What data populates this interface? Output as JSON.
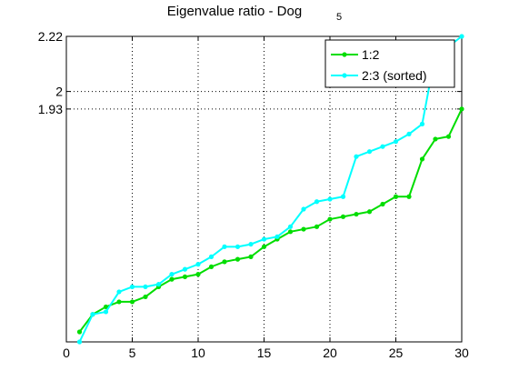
{
  "chart_data": {
    "type": "line",
    "title": "Eigenvalue ratio - Dog",
    "title_subscript": "5",
    "xlabel": "",
    "ylabel": "",
    "xlim": [
      0,
      30
    ],
    "ylim": [
      1,
      2.22
    ],
    "x_ticks": [
      0,
      5,
      10,
      15,
      20,
      25,
      30
    ],
    "x_tick_labels": [
      "0",
      "5",
      "10",
      "15",
      "20",
      "25",
      "30"
    ],
    "y_ticks": [
      1.93,
      2,
      2.22
    ],
    "y_tick_labels": [
      "1.93",
      "2",
      "2.22"
    ],
    "grid": true,
    "legend_position": "top-right",
    "series": [
      {
        "name": "1:2",
        "color": "#00dd00",
        "x": [
          1,
          2,
          3,
          4,
          5,
          6,
          7,
          8,
          9,
          10,
          11,
          12,
          13,
          14,
          15,
          16,
          17,
          18,
          19,
          20,
          21,
          22,
          23,
          24,
          25,
          26,
          27,
          28,
          29,
          30
        ],
        "values": [
          1.04,
          1.11,
          1.14,
          1.16,
          1.16,
          1.18,
          1.22,
          1.25,
          1.26,
          1.27,
          1.3,
          1.32,
          1.33,
          1.34,
          1.38,
          1.41,
          1.44,
          1.45,
          1.46,
          1.49,
          1.5,
          1.51,
          1.52,
          1.55,
          1.58,
          1.58,
          1.73,
          1.81,
          1.82,
          1.93
        ]
      },
      {
        "name": "2:3 (sorted)",
        "color": "#00ffff",
        "x": [
          1,
          2,
          3,
          4,
          5,
          6,
          7,
          8,
          9,
          10,
          11,
          12,
          13,
          14,
          15,
          16,
          17,
          18,
          19,
          20,
          21,
          22,
          23,
          24,
          25,
          26,
          27,
          28,
          29,
          30
        ],
        "values": [
          1.0,
          1.11,
          1.12,
          1.2,
          1.22,
          1.22,
          1.23,
          1.27,
          1.29,
          1.31,
          1.34,
          1.38,
          1.38,
          1.39,
          1.41,
          1.42,
          1.46,
          1.53,
          1.56,
          1.57,
          1.58,
          1.74,
          1.76,
          1.78,
          1.8,
          1.83,
          1.87,
          2.15,
          2.18,
          2.22
        ]
      }
    ]
  }
}
